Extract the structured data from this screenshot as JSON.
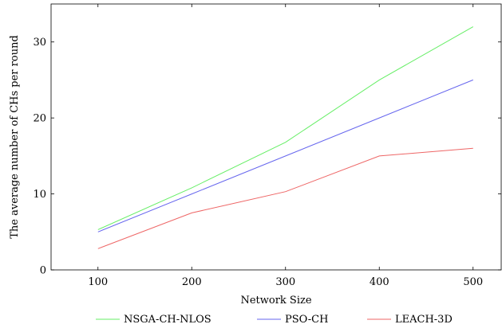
{
  "chart_data": {
    "type": "line",
    "title": "",
    "xlabel": "Network Size",
    "ylabel": "The average number of CHs per round",
    "x": [
      100,
      200,
      300,
      400,
      500
    ],
    "xlim": [
      50,
      530
    ],
    "ylim": [
      0,
      35
    ],
    "xticks": [
      100,
      200,
      300,
      400,
      500
    ],
    "yticks": [
      0,
      10,
      20,
      30
    ],
    "grid": false,
    "legend_position": "bottom",
    "series": [
      {
        "name": "NSGA-CH-NLOS",
        "color": "#66ee66",
        "values": [
          5.3,
          10.8,
          16.8,
          25.0,
          32.0
        ]
      },
      {
        "name": "PSO-CH",
        "color": "#6666ee",
        "values": [
          5.0,
          10.0,
          15.0,
          20.0,
          25.0
        ]
      },
      {
        "name": "LEACH-3D",
        "color": "#ee6666",
        "values": [
          2.8,
          7.5,
          10.3,
          15.0,
          16.0
        ]
      }
    ]
  }
}
